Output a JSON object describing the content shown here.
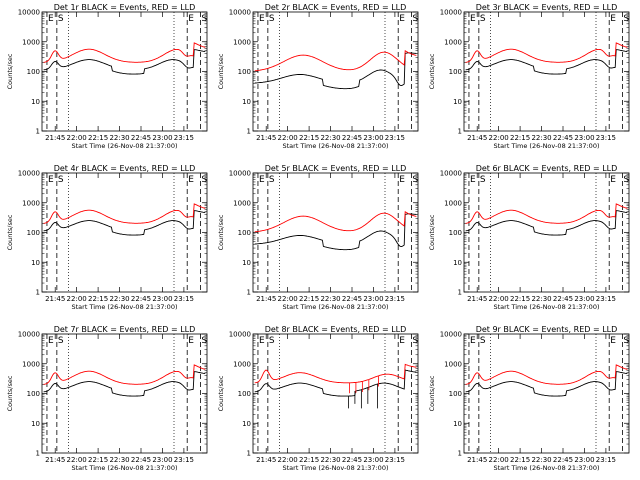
{
  "chart_data": [
    {
      "type": "line",
      "title": "Det 1r BLACK = Events, RED = LLD",
      "profile": "p1",
      "x_tick_labels": [
        "21:45",
        "22:00",
        "22:15",
        "22:30",
        "22:45",
        "23:00",
        "23:15"
      ],
      "xlabel": "Start Time (26-Nov-08 21:37:00)",
      "ylabel": "Counts/sec",
      "y_tick_labels": [
        "1",
        "10",
        "100",
        "1000",
        "10000"
      ],
      "ylim": [
        1,
        10000
      ],
      "yscale": "log",
      "grid": false,
      "series": [
        {
          "name": "Events",
          "color": "#000000"
        },
        {
          "name": "LLD",
          "color": "#ff0000"
        }
      ],
      "markers": [
        "E",
        "S",
        "E",
        "S"
      ]
    },
    {
      "type": "line",
      "title": "Det 2r BLACK = Events, RED = LLD",
      "profile": "p2",
      "x_tick_labels": [
        "21:45",
        "22:00",
        "22:15",
        "22:30",
        "22:45",
        "23:00",
        "23:15"
      ],
      "xlabel": "Start Time (26-Nov-08 21:37:00)",
      "ylabel": "Counts/sec",
      "y_tick_labels": [
        "1",
        "10",
        "100",
        "1000",
        "10000"
      ],
      "ylim": [
        1,
        10000
      ],
      "yscale": "log",
      "grid": false,
      "series": [
        {
          "name": "Events",
          "color": "#000000"
        },
        {
          "name": "LLD",
          "color": "#ff0000"
        }
      ],
      "markers": [
        "E",
        "S",
        "E",
        "S"
      ]
    },
    {
      "type": "line",
      "title": "Det 3r BLACK = Events, RED = LLD",
      "profile": "p1",
      "x_tick_labels": [
        "21:45",
        "22:00",
        "22:15",
        "22:30",
        "22:45",
        "23:00",
        "23:15"
      ],
      "xlabel": "Start Time (26-Nov-08 21:37:00)",
      "ylabel": "Counts/sec",
      "y_tick_labels": [
        "1",
        "10",
        "100",
        "1000",
        "10000"
      ],
      "ylim": [
        1,
        10000
      ],
      "yscale": "log",
      "grid": false,
      "series": [
        {
          "name": "Events",
          "color": "#000000"
        },
        {
          "name": "LLD",
          "color": "#ff0000"
        }
      ],
      "markers": [
        "E",
        "S",
        "E",
        "S"
      ]
    },
    {
      "type": "line",
      "title": "Det 4r BLACK = Events, RED = LLD",
      "profile": "p1",
      "x_tick_labels": [
        "21:45",
        "22:00",
        "22:15",
        "22:30",
        "22:45",
        "23:00",
        "23:15"
      ],
      "xlabel": "Start Time (26-Nov-08 21:37:00)",
      "ylabel": "Counts/sec",
      "y_tick_labels": [
        "1",
        "10",
        "100",
        "1000",
        "10000"
      ],
      "ylim": [
        1,
        10000
      ],
      "yscale": "log",
      "grid": false,
      "series": [
        {
          "name": "Events",
          "color": "#000000"
        },
        {
          "name": "LLD",
          "color": "#ff0000"
        }
      ],
      "markers": [
        "E",
        "S",
        "E",
        "S"
      ]
    },
    {
      "type": "line",
      "title": "Det 5r BLACK = Events, RED = LLD",
      "profile": "p2",
      "x_tick_labels": [
        "21:45",
        "22:00",
        "22:15",
        "22:30",
        "22:45",
        "23:00",
        "23:15"
      ],
      "xlabel": "Start Time (26-Nov-08 21:37:00)",
      "ylabel": "Counts/sec",
      "y_tick_labels": [
        "1",
        "10",
        "100",
        "1000",
        "10000"
      ],
      "ylim": [
        1,
        10000
      ],
      "yscale": "log",
      "grid": false,
      "series": [
        {
          "name": "Events",
          "color": "#000000"
        },
        {
          "name": "LLD",
          "color": "#ff0000"
        }
      ],
      "markers": [
        "E",
        "S",
        "E",
        "S"
      ]
    },
    {
      "type": "line",
      "title": "Det 6r BLACK = Events, RED = LLD",
      "profile": "p1",
      "x_tick_labels": [
        "21:45",
        "22:00",
        "22:15",
        "22:30",
        "22:45",
        "23:00",
        "23:15"
      ],
      "xlabel": "Start Time (26-Nov-08 21:37:00)",
      "ylabel": "Counts/sec",
      "y_tick_labels": [
        "1",
        "10",
        "100",
        "1000",
        "10000"
      ],
      "ylim": [
        1,
        10000
      ],
      "yscale": "log",
      "grid": false,
      "series": [
        {
          "name": "Events",
          "color": "#000000"
        },
        {
          "name": "LLD",
          "color": "#ff0000"
        }
      ],
      "markers": [
        "E",
        "S",
        "E",
        "S"
      ]
    },
    {
      "type": "line",
      "title": "Det 7r BLACK = Events, RED = LLD",
      "profile": "p1",
      "x_tick_labels": [
        "21:45",
        "22:00",
        "22:15",
        "22:30",
        "22:45",
        "23:00",
        "23:15"
      ],
      "xlabel": "Start Time (26-Nov-08 21:37:00)",
      "ylabel": "Counts/sec",
      "y_tick_labels": [
        "1",
        "10",
        "100",
        "1000",
        "10000"
      ],
      "ylim": [
        1,
        10000
      ],
      "yscale": "log",
      "grid": false,
      "series": [
        {
          "name": "Events",
          "color": "#000000"
        },
        {
          "name": "LLD",
          "color": "#ff0000"
        }
      ],
      "markers": [
        "E",
        "S",
        "E",
        "S"
      ]
    },
    {
      "type": "line",
      "title": "Det 8r BLACK = Events, RED = LLD",
      "profile": "p3",
      "x_tick_labels": [
        "21:45",
        "22:00",
        "22:15",
        "22:30",
        "22:45",
        "23:00",
        "23:15"
      ],
      "xlabel": "Start Time (26-Nov-08 21:37:00)",
      "ylabel": "Counts/sec",
      "y_tick_labels": [
        "1",
        "10",
        "100",
        "1000",
        "10000"
      ],
      "ylim": [
        1,
        10000
      ],
      "yscale": "log",
      "grid": false,
      "series": [
        {
          "name": "Events",
          "color": "#000000"
        },
        {
          "name": "LLD",
          "color": "#ff0000"
        }
      ],
      "markers": [
        "E",
        "S",
        "E",
        "S"
      ]
    },
    {
      "type": "line",
      "title": "Det 9r BLACK = Events, RED = LLD",
      "profile": "p1",
      "x_tick_labels": [
        "21:45",
        "22:00",
        "22:15",
        "22:30",
        "22:45",
        "23:00",
        "23:15"
      ],
      "xlabel": "Start Time (26-Nov-08 21:37:00)",
      "ylabel": "Counts/sec",
      "y_tick_labels": [
        "1",
        "10",
        "100",
        "1000",
        "10000"
      ],
      "ylim": [
        1,
        10000
      ],
      "yscale": "log",
      "grid": false,
      "series": [
        {
          "name": "Events",
          "color": "#000000"
        },
        {
          "name": "LLD",
          "color": "#ff0000"
        }
      ],
      "markers": [
        "E",
        "S",
        "E",
        "S"
      ]
    }
  ]
}
